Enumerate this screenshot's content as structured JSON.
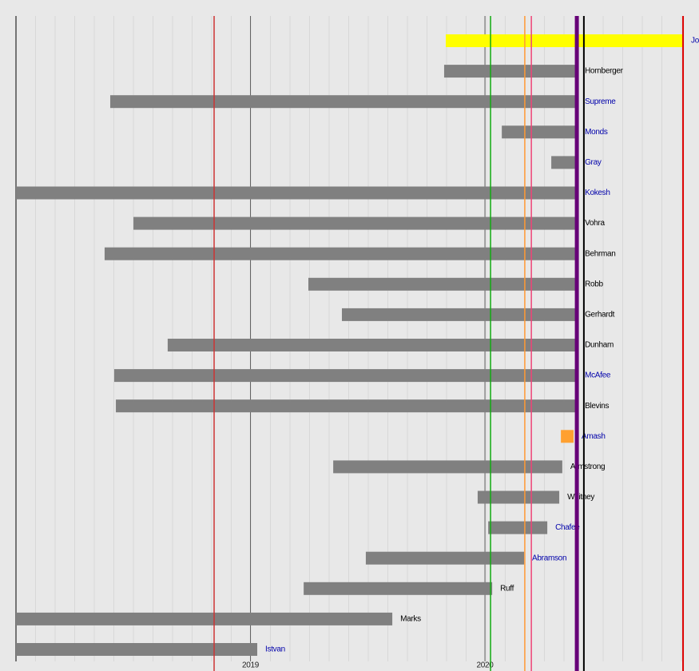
{
  "chart_data": {
    "type": "timeline",
    "xlim": [
      2018.0,
      2020.913
    ],
    "xticks": [
      2019,
      2020
    ],
    "rows": [
      {
        "name": "Jo",
        "start": 2019.833,
        "end": 2020.845,
        "color": "#ffff00",
        "label_color": "#0000aa"
      },
      {
        "name": "Hornberger",
        "start": 2019.826,
        "end": 2020.392,
        "color": "#808080",
        "label_color": "#000000"
      },
      {
        "name": "Supreme",
        "start": 2018.402,
        "end": 2020.392,
        "color": "#808080",
        "label_color": "#0000aa"
      },
      {
        "name": "Monds",
        "start": 2020.072,
        "end": 2020.392,
        "color": "#808080",
        "label_color": "#0000aa"
      },
      {
        "name": "Gray",
        "start": 2020.283,
        "end": 2020.392,
        "color": "#808080",
        "label_color": "#0000aa"
      },
      {
        "name": "Kokesh",
        "start": 2018.0,
        "end": 2020.392,
        "color": "#808080",
        "label_color": "#0000aa"
      },
      {
        "name": "Vohra",
        "start": 2018.501,
        "end": 2020.392,
        "color": "#808080",
        "label_color": "#000000"
      },
      {
        "name": "Behrman",
        "start": 2018.378,
        "end": 2020.392,
        "color": "#808080",
        "label_color": "#000000"
      },
      {
        "name": "Robb",
        "start": 2019.247,
        "end": 2020.392,
        "color": "#808080",
        "label_color": "#000000"
      },
      {
        "name": "Gerhardt",
        "start": 2019.39,
        "end": 2020.392,
        "color": "#808080",
        "label_color": "#000000"
      },
      {
        "name": "Dunham",
        "start": 2018.647,
        "end": 2020.392,
        "color": "#808080",
        "label_color": "#000000"
      },
      {
        "name": "McAfee",
        "start": 2018.419,
        "end": 2020.392,
        "color": "#808080",
        "label_color": "#0000aa"
      },
      {
        "name": "Blevins",
        "start": 2018.426,
        "end": 2020.392,
        "color": "#808080",
        "label_color": "#000000"
      },
      {
        "name": "Amash",
        "start": 2020.324,
        "end": 2020.378,
        "color": "#ffa030",
        "label_color": "#0000aa"
      },
      {
        "name": "Armstrong",
        "start": 2019.353,
        "end": 2020.33,
        "color": "#808080",
        "label_color": "#000000"
      },
      {
        "name": "Whitney",
        "start": 2019.969,
        "end": 2020.317,
        "color": "#808080",
        "label_color": "#000000"
      },
      {
        "name": "Chafee",
        "start": 2020.014,
        "end": 2020.266,
        "color": "#808080",
        "label_color": "#0000aa"
      },
      {
        "name": "Abramson",
        "start": 2019.492,
        "end": 2020.167,
        "color": "#808080",
        "label_color": "#0000aa"
      },
      {
        "name": "Ruff",
        "start": 2019.227,
        "end": 2020.031,
        "color": "#808080",
        "label_color": "#000000"
      },
      {
        "name": "Marks",
        "start": 2018.0,
        "end": 2019.605,
        "color": "#808080",
        "label_color": "#000000"
      },
      {
        "name": "Istvan",
        "start": 2018.0,
        "end": 2019.029,
        "color": "#808080",
        "label_color": "#0000aa"
      }
    ],
    "markers": [
      {
        "x": 2018.845,
        "color": "#cc3333",
        "width": 1.5
      },
      {
        "x": 2020.024,
        "color": "#11aa11",
        "width": 1.5
      },
      {
        "x": 2020.17,
        "color": "#ff9933",
        "width": 1.5
      },
      {
        "x": 2020.198,
        "color": "#ee4477",
        "width": 1.5
      },
      {
        "x": 2020.392,
        "color": "#660077",
        "width": 5
      },
      {
        "x": 2020.422,
        "color": "#000000",
        "width": 2
      },
      {
        "x": 2020.845,
        "color": "#dd0000",
        "width": 2
      }
    ]
  }
}
